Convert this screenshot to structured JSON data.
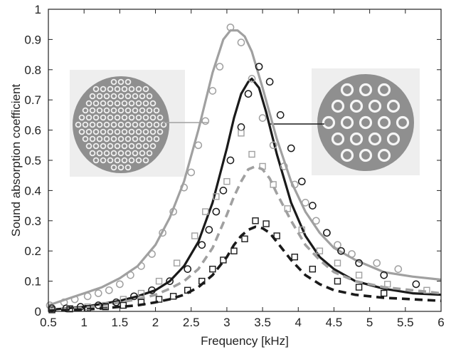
{
  "chart_data": {
    "type": "line",
    "xlabel": "Frequency [kHz]",
    "ylabel": "Sound absorption coefficient",
    "xlim": [
      0.5,
      6
    ],
    "ylim": [
      0,
      1
    ],
    "xticks": [
      "0.5",
      "1",
      "1.5",
      "2",
      "2.5",
      "3",
      "3.5",
      "4",
      "4.5",
      "5",
      "5.5",
      "6"
    ],
    "yticks": [
      "0",
      "0.1",
      "0.2",
      "0.3",
      "0.4",
      "0.5",
      "0.6",
      "0.7",
      "0.8",
      "0.9",
      "1"
    ],
    "grid": false,
    "colors": {
      "gray": "#a0a0a0",
      "black": "#1a1a1a"
    },
    "series": [
      {
        "key": "gray-solid",
        "style": "solid-line",
        "color": "gray",
        "x": [
          0.5,
          0.75,
          1.0,
          1.25,
          1.5,
          1.75,
          2.0,
          2.2,
          2.4,
          2.6,
          2.8,
          2.95,
          3.05,
          3.15,
          3.25,
          3.35,
          3.5,
          3.7,
          3.9,
          4.1,
          4.3,
          4.5,
          4.8,
          5.2,
          5.6,
          6.0
        ],
        "y": [
          0.02,
          0.04,
          0.06,
          0.08,
          0.11,
          0.15,
          0.22,
          0.31,
          0.43,
          0.6,
          0.79,
          0.9,
          0.93,
          0.93,
          0.91,
          0.86,
          0.74,
          0.57,
          0.43,
          0.33,
          0.26,
          0.21,
          0.17,
          0.13,
          0.115,
          0.105
        ]
      },
      {
        "key": "black-solid",
        "style": "solid-line",
        "color": "black",
        "x": [
          0.5,
          0.75,
          1.0,
          1.25,
          1.5,
          1.75,
          2.0,
          2.2,
          2.4,
          2.6,
          2.8,
          3.0,
          3.1,
          3.2,
          3.3,
          3.35,
          3.45,
          3.55,
          3.7,
          3.9,
          4.1,
          4.3,
          4.5,
          4.8,
          5.2,
          5.6,
          6.0
        ],
        "y": [
          0.005,
          0.01,
          0.015,
          0.025,
          0.035,
          0.05,
          0.07,
          0.1,
          0.15,
          0.23,
          0.36,
          0.54,
          0.64,
          0.72,
          0.76,
          0.77,
          0.74,
          0.66,
          0.52,
          0.36,
          0.25,
          0.18,
          0.14,
          0.1,
          0.075,
          0.06,
          0.055
        ]
      },
      {
        "key": "gray-dashed",
        "style": "dashed-line",
        "color": "gray",
        "x": [
          0.5,
          0.75,
          1.0,
          1.25,
          1.5,
          1.75,
          2.0,
          2.2,
          2.4,
          2.6,
          2.8,
          3.0,
          3.1,
          3.2,
          3.3,
          3.4,
          3.5,
          3.6,
          3.7,
          3.9,
          4.1,
          4.3,
          4.5,
          4.8,
          5.2,
          5.6,
          6.0
        ],
        "y": [
          0.005,
          0.008,
          0.012,
          0.02,
          0.03,
          0.04,
          0.055,
          0.075,
          0.1,
          0.14,
          0.21,
          0.32,
          0.38,
          0.43,
          0.47,
          0.48,
          0.47,
          0.44,
          0.39,
          0.3,
          0.22,
          0.17,
          0.13,
          0.1,
          0.08,
          0.07,
          0.06
        ]
      },
      {
        "key": "black-dashed",
        "style": "dashed-line",
        "color": "black",
        "x": [
          0.5,
          0.75,
          1.0,
          1.25,
          1.5,
          1.75,
          2.0,
          2.2,
          2.4,
          2.6,
          2.8,
          3.0,
          3.1,
          3.2,
          3.3,
          3.4,
          3.5,
          3.6,
          3.7,
          3.9,
          4.1,
          4.3,
          4.5,
          4.8,
          5.2,
          5.6,
          6.0
        ],
        "y": [
          0.002,
          0.004,
          0.006,
          0.01,
          0.015,
          0.02,
          0.03,
          0.04,
          0.055,
          0.08,
          0.12,
          0.18,
          0.22,
          0.25,
          0.27,
          0.28,
          0.275,
          0.26,
          0.23,
          0.17,
          0.12,
          0.09,
          0.07,
          0.055,
          0.045,
          0.04,
          0.035
        ]
      },
      {
        "key": "gray-circles",
        "style": "circle-markers",
        "color": "gray",
        "x": [
          0.52,
          0.72,
          0.87,
          1.05,
          1.2,
          1.35,
          1.5,
          1.65,
          1.8,
          1.95,
          2.1,
          2.25,
          2.4,
          2.5,
          2.6,
          2.7,
          2.8,
          2.9,
          3.05,
          3.2,
          3.35,
          3.5,
          3.65,
          3.8,
          3.95,
          4.1,
          4.25,
          4.4,
          4.55,
          4.75,
          5.1,
          5.4
        ],
        "y": [
          0.02,
          0.03,
          0.04,
          0.05,
          0.06,
          0.07,
          0.09,
          0.12,
          0.15,
          0.19,
          0.26,
          0.33,
          0.41,
          0.46,
          0.55,
          0.63,
          0.73,
          0.81,
          0.94,
          0.89,
          0.77,
          0.64,
          0.55,
          0.48,
          0.42,
          0.36,
          0.3,
          0.26,
          0.22,
          0.19,
          0.16,
          0.14
        ]
      },
      {
        "key": "black-circles",
        "style": "circle-markers",
        "color": "black",
        "x": [
          0.55,
          0.75,
          0.95,
          1.2,
          1.45,
          1.7,
          1.95,
          2.2,
          2.45,
          2.65,
          2.75,
          2.85,
          2.95,
          3.05,
          3.2,
          3.3,
          3.45,
          3.6,
          3.75,
          3.9,
          4.05,
          4.2,
          4.4,
          4.6,
          4.85,
          5.2,
          5.65
        ],
        "y": [
          0.01,
          0.01,
          0.015,
          0.02,
          0.03,
          0.05,
          0.07,
          0.1,
          0.14,
          0.22,
          0.27,
          0.33,
          0.4,
          0.5,
          0.61,
          0.72,
          0.81,
          0.76,
          0.65,
          0.54,
          0.43,
          0.35,
          0.26,
          0.2,
          0.16,
          0.12,
          0.09
        ]
      },
      {
        "key": "gray-squares",
        "style": "square-markers",
        "color": "gray",
        "x": [
          0.55,
          0.8,
          1.05,
          1.3,
          1.55,
          1.8,
          2.05,
          2.3,
          2.55,
          2.7,
          2.85,
          3.0,
          3.2,
          3.35,
          3.5,
          3.65,
          3.85,
          4.05,
          4.3,
          4.55,
          4.85,
          5.25,
          5.8
        ],
        "y": [
          0.005,
          0.01,
          0.015,
          0.02,
          0.04,
          0.06,
          0.1,
          0.16,
          0.25,
          0.33,
          0.38,
          0.43,
          0.59,
          0.52,
          0.48,
          0.42,
          0.34,
          0.27,
          0.2,
          0.16,
          0.12,
          0.09,
          0.07
        ]
      },
      {
        "key": "black-squares",
        "style": "square-markers",
        "color": "black",
        "x": [
          0.55,
          0.8,
          1.05,
          1.3,
          1.55,
          1.8,
          2.05,
          2.25,
          2.45,
          2.65,
          2.8,
          2.95,
          3.1,
          3.25,
          3.4,
          3.55,
          3.7,
          3.95,
          4.2,
          4.55,
          4.85,
          5.2
        ],
        "y": [
          0.005,
          0.008,
          0.01,
          0.015,
          0.02,
          0.03,
          0.04,
          0.05,
          0.07,
          0.1,
          0.14,
          0.17,
          0.2,
          0.24,
          0.3,
          0.29,
          0.25,
          0.18,
          0.14,
          0.1,
          0.08,
          0.06
        ]
      }
    ],
    "insets": [
      {
        "key": "dense-perforation",
        "description_icon": "dense-perforation-disc-icon",
        "points_to_series": "gray-solid"
      },
      {
        "key": "sparse-perforation",
        "description_icon": "sparse-perforation-disc-icon",
        "points_to_series": "black-solid"
      }
    ]
  }
}
